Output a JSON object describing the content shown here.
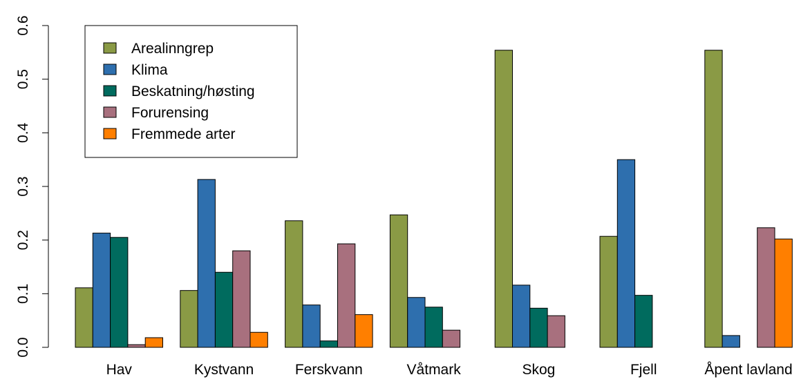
{
  "chart_data": {
    "type": "bar",
    "categories": [
      "Hav",
      "Kystvann",
      "Ferskvann",
      "Våtmark",
      "Skog",
      "Fjell",
      "Åpent lavland"
    ],
    "series": [
      {
        "name": "Arealinngrep",
        "color": "#8a9a45",
        "values": [
          0.111,
          0.106,
          0.236,
          0.247,
          0.554,
          0.207,
          0.554
        ]
      },
      {
        "name": "Klima",
        "color": "#2e6fae",
        "values": [
          0.213,
          0.313,
          0.079,
          0.093,
          0.116,
          0.35,
          0.022
        ]
      },
      {
        "name": "Beskatning/høsting",
        "color": "#006b5e",
        "values": [
          0.205,
          0.14,
          0.012,
          0.075,
          0.073,
          0.097,
          0
        ]
      },
      {
        "name": "Forurensing",
        "color": "#a8707e",
        "values": [
          0.005,
          0.18,
          0.193,
          0.032,
          0.059,
          0,
          0.223
        ]
      },
      {
        "name": "Fremmede arter",
        "color": "#ff7f00",
        "values": [
          0.018,
          0.028,
          0.061,
          0,
          0,
          0,
          0.202
        ]
      }
    ],
    "ylim": [
      0,
      0.6
    ],
    "yticks": [
      {
        "value": 0,
        "label": "0.0"
      },
      0.1,
      0.2,
      0.3,
      0.4,
      0.5,
      0.6
    ],
    "legend": "top-left"
  }
}
